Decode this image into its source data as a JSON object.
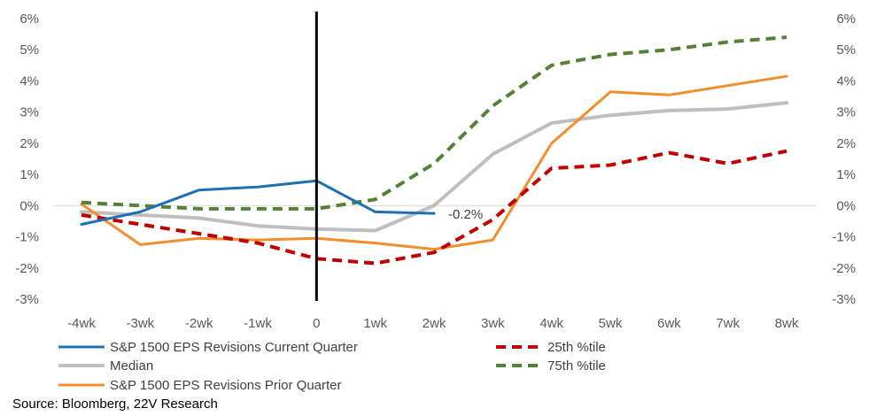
{
  "chart_data": {
    "type": "line",
    "x": [
      "-4wk",
      "-3wk",
      "-2wk",
      "-1wk",
      "0",
      "1wk",
      "2wk",
      "3wk",
      "4wk",
      "5wk",
      "6wk",
      "7wk",
      "8wk"
    ],
    "ylim": [
      -3,
      6
    ],
    "yticks_left": [
      "-3%",
      "-2%",
      "-1%",
      "0%",
      "1%",
      "2%",
      "3%",
      "4%",
      "5%",
      "6%"
    ],
    "yticks_right": [
      "-3%",
      "-2%",
      "-1%",
      "0%",
      "1%",
      "2%",
      "3%",
      "4%",
      "5%",
      "6%"
    ],
    "ytick_values": [
      -3,
      -2,
      -1,
      0,
      1,
      2,
      3,
      4,
      5,
      6
    ],
    "vline_at": "0",
    "legend_position": "bottom",
    "series": [
      {
        "name": "S&P 1500  EPS Revisions Current Quarter",
        "color": "#1f6fb5",
        "style": "solid",
        "width": "thin",
        "values": [
          -0.6,
          -0.2,
          0.5,
          0.6,
          0.8,
          -0.2,
          -0.25,
          null,
          null,
          null,
          null,
          null,
          null
        ]
      },
      {
        "name": "Median",
        "color": "#bfbfbf",
        "style": "solid",
        "width": "thick",
        "values": [
          -0.2,
          -0.3,
          -0.4,
          -0.65,
          -0.75,
          -0.8,
          0.0,
          1.65,
          2.65,
          2.9,
          3.05,
          3.1,
          3.3
        ]
      },
      {
        "name": "S&P 1500 EPS Revisions Prior Quarter",
        "color": "#f28e2b",
        "style": "solid",
        "width": "thin",
        "values": [
          0.05,
          -1.25,
          -1.05,
          -1.1,
          -1.05,
          -1.2,
          -1.4,
          -1.1,
          2.0,
          3.65,
          3.55,
          3.85,
          4.15
        ]
      },
      {
        "name": "25th %tile",
        "color": "#c00000",
        "style": "dashed",
        "width": "thick",
        "values": [
          -0.3,
          -0.6,
          -0.9,
          -1.2,
          -1.7,
          -1.85,
          -1.5,
          -0.45,
          1.2,
          1.3,
          1.7,
          1.35,
          1.75
        ]
      },
      {
        "name": "75th %tile",
        "color": "#548235",
        "style": "dashed",
        "width": "thick",
        "values": [
          0.1,
          0.0,
          -0.1,
          -0.1,
          -0.1,
          0.2,
          1.35,
          3.2,
          4.5,
          4.85,
          5.0,
          5.25,
          5.4
        ]
      }
    ],
    "annotation": {
      "text": "-0.2%",
      "x": "2wk",
      "y": -0.25
    }
  },
  "source": "Source: Bloomberg, 22V Research"
}
